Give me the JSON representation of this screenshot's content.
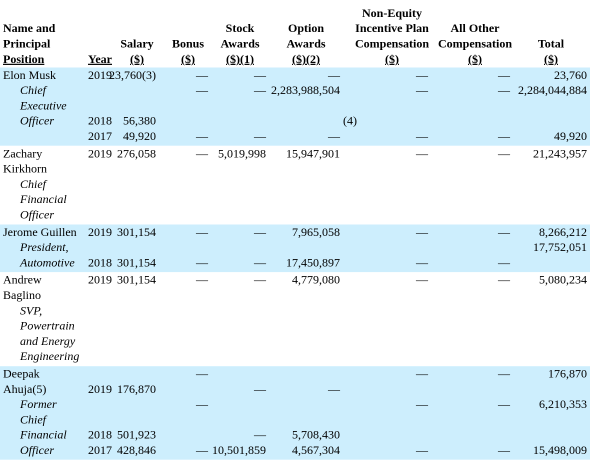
{
  "header": {
    "columns": [
      [
        "Name and",
        "Principal",
        "Position"
      ],
      [
        "Year"
      ],
      [
        "Salary",
        "($)"
      ],
      [
        "Bonus",
        "($)"
      ],
      [
        "Stock",
        "Awards",
        "($)(1)"
      ],
      [
        "Option",
        "Awards",
        "($)(2)"
      ],
      [
        "Non-Equity",
        "Incentive Plan",
        "Compensation",
        "($)"
      ],
      [
        "All Other",
        "Compensation",
        "($)"
      ],
      [
        "Total",
        "($)"
      ]
    ]
  },
  "body": [
    {
      "lines": [
        {
          "name": "Elon Musk",
          "year": "2019",
          "salary": "23,760(3)",
          "bonus": "—",
          "stock": "—",
          "option": "—",
          "nonequity": "—",
          "other": "—",
          "total": "23,760"
        },
        {
          "title": "Chief",
          "bonus": "—",
          "stock": "—",
          "option": "2,283,988,504",
          "nonequity": "—",
          "other": "—",
          "total": "2,284,044,884"
        },
        {
          "title": "Executive"
        },
        {
          "title": "Officer",
          "year": "2018",
          "salary": "56,380",
          "note": "(4)"
        },
        {
          "year": "2017",
          "salary": "49,920",
          "bonus": "—",
          "stock": "—",
          "option": "—",
          "nonequity": "—",
          "other": "—",
          "total": "49,920"
        }
      ]
    },
    {
      "lines": [
        {
          "name": "Zachary",
          "year": "2019",
          "salary": "276,058",
          "bonus": "—",
          "stock": "5,019,998",
          "option": "15,947,901",
          "nonequity": "—",
          "other": "—",
          "total": "21,243,957"
        },
        {
          "name": "Kirkhorn"
        },
        {
          "title": "Chief"
        },
        {
          "title": "Financial"
        },
        {
          "title": "Officer"
        }
      ]
    },
    {
      "lines": [
        {
          "name": "Jerome Guillen",
          "year": "2019",
          "salary": "301,154",
          "bonus": "—",
          "stock": "—",
          "option": "7,965,058",
          "nonequity": "—",
          "other": "—",
          "total": "8,266,212"
        },
        {
          "title": "President,",
          "total": "17,752,051"
        },
        {
          "title": "Automotive",
          "year": "2018",
          "salary": "301,154",
          "bonus": "—",
          "stock": "—",
          "option": "17,450,897",
          "nonequity": "—",
          "other": "—"
        }
      ]
    },
    {
      "lines": [
        {
          "name": "Andrew",
          "year": "2019",
          "salary": "301,154",
          "bonus": "—",
          "stock": "—",
          "option": "4,779,080",
          "nonequity": "—",
          "other": "—",
          "total": "5,080,234"
        },
        {
          "name": "Baglino"
        },
        {
          "title": "SVP,"
        },
        {
          "title": "Powertrain"
        },
        {
          "title": "and Energy"
        },
        {
          "title": "Engineering"
        }
      ]
    },
    {
      "lines": [
        {
          "name": "Deepak",
          "bonus": "—",
          "nonequity": "—",
          "other": "—",
          "total": "176,870"
        },
        {
          "name": "Ahuja(5)",
          "year": "2019",
          "salary": "176,870",
          "stock": "—",
          "option": "—"
        },
        {
          "title": "Former",
          "bonus": "—",
          "nonequity": "—",
          "other": "—",
          "total": "6,210,353"
        },
        {
          "title": "Chief"
        },
        {
          "title": "Financial",
          "year": "2018",
          "salary": "501,923",
          "stock": "—",
          "option": "5,708,430"
        },
        {
          "title": "Officer",
          "year": "2017",
          "salary": "428,846",
          "bonus": "—",
          "stock": "10,501,859",
          "option": "4,567,304",
          "nonequity": "—",
          "other": "—",
          "total": "15,498,009"
        }
      ]
    }
  ]
}
